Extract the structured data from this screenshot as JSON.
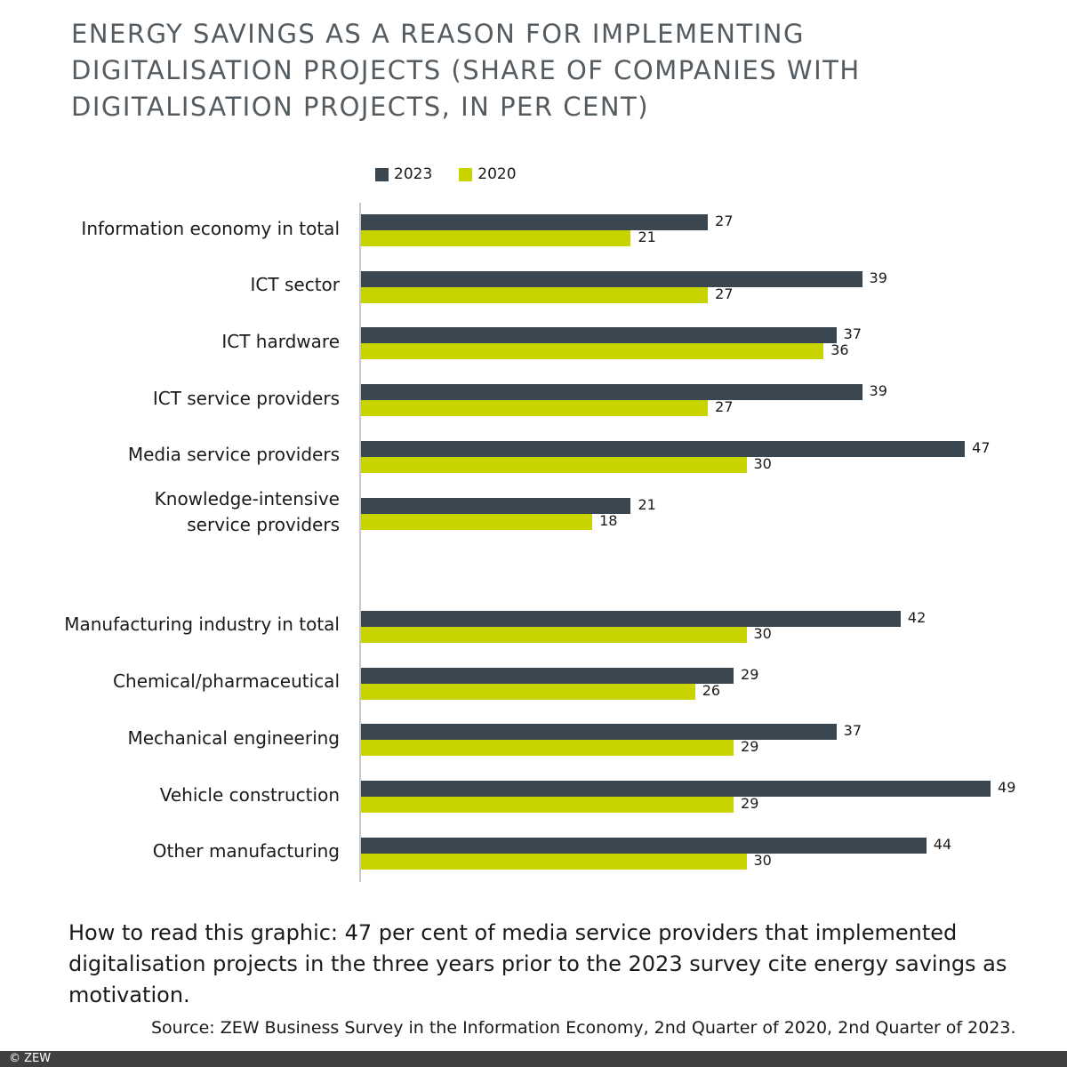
{
  "chart_data": {
    "type": "bar",
    "orientation": "horizontal",
    "title": "Energy savings as a reason for implementing digitalisation projects (share of companies with digitalisation projects, in per cent)",
    "categories": [
      "Information economy in total",
      "ICT sector",
      "ICT hardware",
      "ICT service providers",
      "Media service providers",
      "Knowledge-intensive\nservice providers",
      "Manufacturing industry in total",
      "Chemical/pharmaceutical",
      "Mechanical engineering",
      "Vehicle construction",
      "Other manufacturing"
    ],
    "series": [
      {
        "name": "2023",
        "color": "#3a4750",
        "values": [
          27,
          39,
          37,
          39,
          47,
          21,
          42,
          29,
          37,
          49,
          44
        ]
      },
      {
        "name": "2020",
        "color": "#c8d400",
        "values": [
          21,
          27,
          36,
          27,
          30,
          18,
          30,
          26,
          29,
          29,
          30
        ]
      }
    ],
    "legend_position": "top",
    "grid": false,
    "xlim": [
      0,
      50
    ]
  },
  "note": "How to read this graphic: 47 per cent of media service providers that implemented digitalisation projects in the three years prior to the 2023 survey cite energy savings as motivation.",
  "source": "Source: ZEW Business Survey in the Information Economy, 2nd Quarter of 2020, 2nd Quarter of 2023.",
  "footer": "© ZEW"
}
